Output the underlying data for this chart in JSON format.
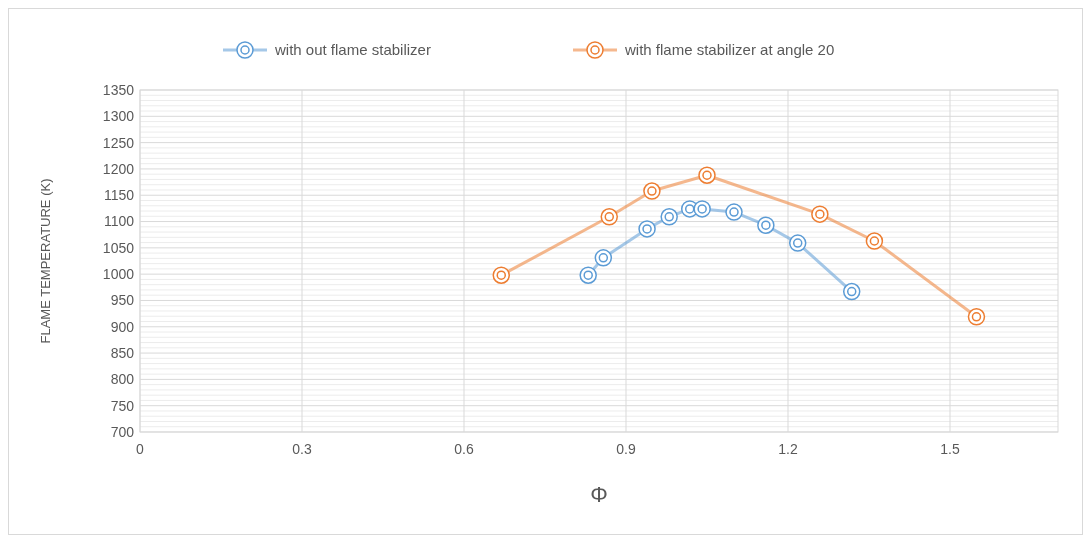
{
  "chart_data": {
    "type": "line",
    "xlabel": "Φ",
    "ylabel": "FLAME TEMPERATURE (K)",
    "xlim": [
      0,
      1.7
    ],
    "xticks": [
      0,
      0.3,
      0.6,
      0.9,
      1.2,
      1.5
    ],
    "ylim": [
      700,
      1350
    ],
    "yticks": [
      700,
      750,
      800,
      850,
      900,
      950,
      1000,
      1050,
      1100,
      1150,
      1200,
      1250,
      1300,
      1350
    ],
    "grid": true,
    "legend": "top",
    "marker": "circle",
    "line_style": "solid",
    "series": [
      {
        "name": "with out flame stabilizer",
        "color": "#5b9bd5",
        "x": [
          0.83,
          0.858,
          0.939,
          0.98,
          1.018,
          1.041,
          1.1,
          1.159,
          1.218,
          1.318
        ],
        "values": [
          998,
          1031,
          1086,
          1109,
          1124,
          1124,
          1118,
          1093,
          1059,
          967
        ]
      },
      {
        "name": "with flame stabilizer at angle 20",
        "color": "#ed7d31",
        "x": [
          0.669,
          0.869,
          0.948,
          1.05,
          1.259,
          1.36,
          1.549
        ],
        "values": [
          998,
          1109,
          1158,
          1188,
          1114,
          1063,
          919
        ]
      }
    ]
  }
}
